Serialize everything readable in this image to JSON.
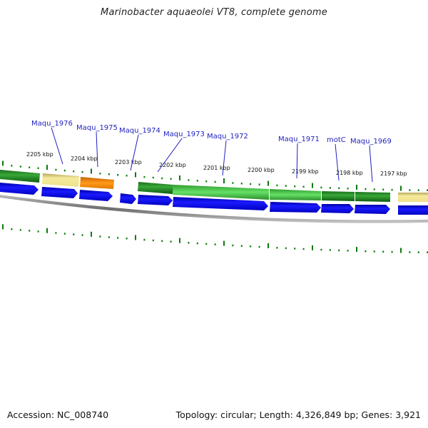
{
  "title": "Marinobacter aquaeolei VT8, complete genome",
  "footer": {
    "accession": "Accession: NC_008740",
    "summary": "Topology: circular; Length: 4,326,849 bp; Genes: 3,921"
  },
  "colors": {
    "label_blue": "#1f1fbf",
    "cds_blue": "#0000dd",
    "dark_green": "#228b22",
    "light_green": "#44cc44",
    "orange": "#ff8c00",
    "tan": "#f0e68c",
    "tick_green": "#0a7a0a",
    "backbone": "#808080"
  },
  "kbp_labels": [
    "2205 kbp",
    "2204 kbp",
    "2203 kbp",
    "2202 kbp",
    "2201 kbp",
    "2200 kbp",
    "2199 kbp",
    "2198 kbp",
    "2197 kbp"
  ],
  "gene_labels": [
    "Maqu_1976",
    "Maqu_1975",
    "Maqu_1974",
    "Maqu_1973",
    "Maqu_1972",
    "Maqu_1971",
    "motC",
    "Maqu_1969"
  ]
}
